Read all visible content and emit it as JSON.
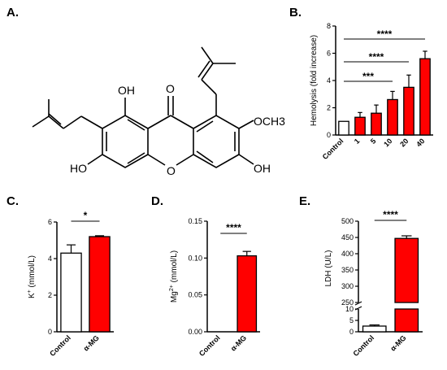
{
  "panel_labels": {
    "a": "A.",
    "b": "B.",
    "c": "C.",
    "d": "D.",
    "e": "E."
  },
  "molecule_labels": {
    "oh_top": "OH",
    "ketone_o": "O",
    "och3": "OCH3",
    "ho_left": "HO",
    "ring_o": "O",
    "oh_right": "OH"
  },
  "bar_color": "#ff0000",
  "control_color": "#ffffff",
  "chart_data": [
    {
      "id": "B",
      "type": "bar",
      "title": "",
      "ylabel": "Hemolysis (fold increase)",
      "xlabel": "",
      "categories": [
        "Control",
        "1",
        "5",
        "10",
        "20",
        "40"
      ],
      "values": [
        1.0,
        1.3,
        1.6,
        2.6,
        3.5,
        5.6
      ],
      "errors": [
        0,
        0.35,
        0.6,
        0.6,
        0.9,
        0.55
      ],
      "ylim": [
        0,
        8
      ],
      "yticks": [
        0,
        2,
        4,
        6,
        8
      ],
      "significance": [
        {
          "from": "Control",
          "to": "40",
          "label": "****"
        },
        {
          "from": "Control",
          "to": "20",
          "label": "****"
        },
        {
          "from": "Control",
          "to": "10",
          "label": "***"
        }
      ]
    },
    {
      "id": "C",
      "type": "bar",
      "title": "",
      "ylabel": "K+ (mmol/L)",
      "ylabel_main": "K",
      "ylabel_sup": "+",
      "ylabel_rest": " (mmol/L)",
      "categories": [
        "Control",
        "α-MG"
      ],
      "values": [
        4.3,
        5.2
      ],
      "errors": [
        0.45,
        0.05
      ],
      "ylim": [
        0,
        6
      ],
      "yticks": [
        0,
        2,
        4,
        6
      ],
      "significance": [
        {
          "from": "Control",
          "to": "α-MG",
          "label": "*"
        }
      ]
    },
    {
      "id": "D",
      "type": "bar",
      "title": "",
      "ylabel": "Mg2+ (mmol/L)",
      "ylabel_main": "Mg",
      "ylabel_sup": "2+",
      "ylabel_rest": " (mmol/L)",
      "categories": [
        "Control",
        "α-MG"
      ],
      "values": [
        0.0,
        0.103
      ],
      "errors": [
        0,
        0.006
      ],
      "ylim": [
        0,
        0.15
      ],
      "yticks": [
        "0.00",
        "0.05",
        "0.10",
        "0.15"
      ],
      "significance": [
        {
          "from": "Control",
          "to": "α-MG",
          "label": "****"
        }
      ]
    },
    {
      "id": "E",
      "type": "bar",
      "title": "",
      "ylabel": "LDH (U/L)",
      "categories": [
        "Control",
        "α-MG"
      ],
      "values": [
        2.5,
        447
      ],
      "errors": [
        0.5,
        8
      ],
      "ylim": [
        0,
        500
      ],
      "axis_break": [
        10,
        250
      ],
      "yticks_lower": [
        0,
        5,
        10
      ],
      "yticks_upper": [
        250,
        300,
        350,
        400,
        450,
        500
      ],
      "significance": [
        {
          "from": "Control",
          "to": "α-MG",
          "label": "****"
        }
      ]
    }
  ]
}
